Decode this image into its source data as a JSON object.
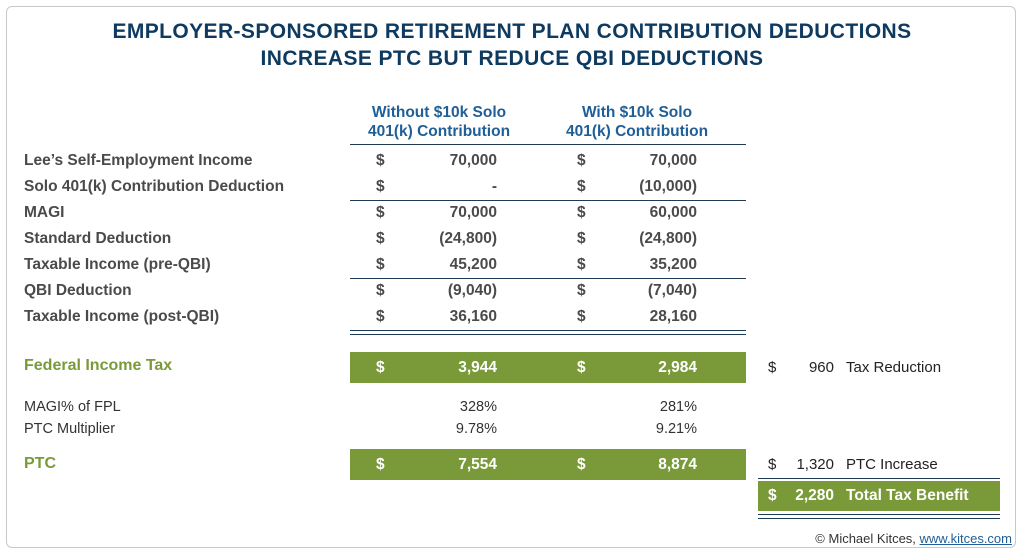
{
  "title": {
    "line1": "EMPLOYER-SPONSORED RETIREMENT PLAN CONTRIBUTION DEDUCTIONS",
    "line2": "INCREASE PTC BUT REDUCE QBI DEDUCTIONS"
  },
  "columns": {
    "without": {
      "line1": "Without $10k Solo",
      "line2": "401(k) Contribution"
    },
    "with": {
      "line1": "With $10k Solo",
      "line2": "401(k) Contribution"
    }
  },
  "currency_symbol": "$",
  "rows": [
    {
      "label": "Lee’s Self-Employment Income",
      "without": "70,000",
      "with": "70,000"
    },
    {
      "label": "Solo 401(k) Contribution Deduction",
      "without": "-",
      "with": "(10,000)"
    },
    {
      "label": "MAGI",
      "without": "70,000",
      "with": "60,000"
    },
    {
      "label": "Standard Deduction",
      "without": "(24,800)",
      "with": "(24,800)"
    },
    {
      "label": "Taxable Income (pre-QBI)",
      "without": "45,200",
      "with": "35,200"
    },
    {
      "label": "QBI Deduction",
      "without": "(9,040)",
      "with": "(7,040)"
    },
    {
      "label": "Taxable Income (post-QBI)",
      "without": "36,160",
      "with": "28,160"
    }
  ],
  "federal_tax": {
    "label": "Federal Income Tax",
    "without": "3,944",
    "with": "2,984",
    "side_symbol": "$",
    "side_amount": "960",
    "side_label": "Tax Reduction"
  },
  "magi_fpl": {
    "label": "MAGI% of FPL",
    "without": "328%",
    "with": "281%"
  },
  "ptc_multiplier": {
    "label": "PTC Multiplier",
    "without": "9.78%",
    "with": "9.21%"
  },
  "ptc": {
    "label": "PTC",
    "without": "7,554",
    "with": "8,874",
    "side_symbol": "$",
    "side_amount": "1,320",
    "side_label": "PTC Increase"
  },
  "total": {
    "symbol": "$",
    "amount": "2,280",
    "label": "Total Tax Benefit"
  },
  "credit": {
    "text": "© Michael Kitces, ",
    "link": "www.kitces.com"
  },
  "colors": {
    "navy": "#0e3a5f",
    "blue": "#1f5e96",
    "green": "#7a9a3a"
  }
}
